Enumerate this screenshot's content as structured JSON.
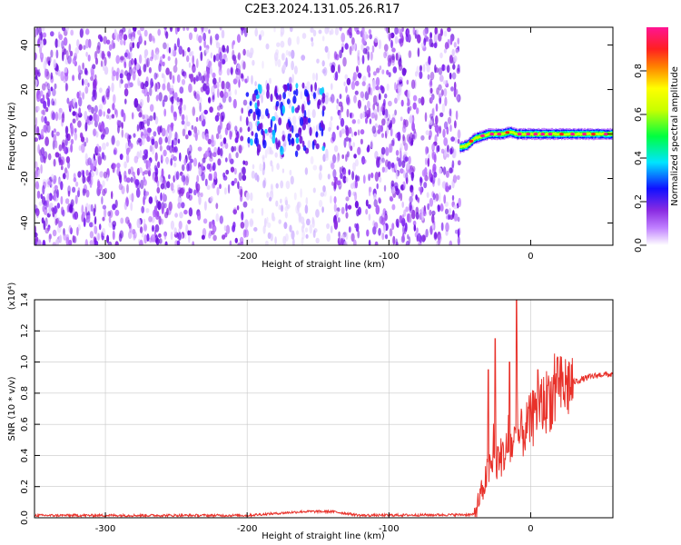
{
  "title": "C2E3.2024.131.05.26.R17",
  "chart_data": [
    {
      "type": "heatmap",
      "title": "C2E3.2024.131.05.26.R17",
      "xlabel": "Height of straight line (km)",
      "ylabel": "Frequency (Hz)",
      "xlim": [
        -350,
        58
      ],
      "ylim": [
        -50,
        48
      ],
      "x_ticks": [
        -300,
        -200,
        -100,
        0
      ],
      "y_ticks": [
        -40,
        -20,
        0,
        20,
        40
      ],
      "x_tick_labels": [
        "-300",
        "-200",
        "-100",
        "0"
      ],
      "y_tick_labels": [
        "-40",
        "-20",
        "0",
        "20",
        "40"
      ],
      "noise_region_x": [
        -350,
        -50
      ],
      "faint_band_x": [
        -200,
        -140
      ],
      "signal_cluster": {
        "x": [
          -200,
          -145
        ],
        "y": [
          -10,
          22
        ]
      },
      "signal_trace": {
        "x": [
          -50,
          -45,
          -40,
          -35,
          -30,
          -25,
          -20,
          -15,
          -10,
          -5,
          0,
          10,
          20,
          30,
          40,
          50,
          58
        ],
        "y": [
          -6,
          -5,
          -2,
          -1,
          0,
          0,
          0,
          1,
          0,
          0,
          0,
          0,
          0,
          0,
          0,
          0,
          0
        ]
      },
      "colorbar": {
        "label": "Normalized spectral amplitude",
        "range": [
          0.0,
          1.0
        ],
        "ticks": [
          0.0,
          0.2,
          0.4,
          0.6,
          0.8
        ],
        "tick_labels": [
          "0.0",
          "0.2",
          "0.4",
          "0.6",
          "0.8"
        ],
        "colors": [
          "#ffffff",
          "#a855f7",
          "#7a1ff0",
          "#1020ff",
          "#00e0ff",
          "#00ff40",
          "#c8ff00",
          "#ffff00",
          "#ff8000",
          "#ff2020",
          "#ff1493"
        ]
      }
    },
    {
      "type": "line",
      "xlabel": "Height of straight line (km)",
      "ylabel": "SNR (10 * v/v)",
      "scale_label": "(x10⁴)",
      "xlim": [
        -350,
        58
      ],
      "ylim": [
        0,
        1.4
      ],
      "x_ticks": [
        -300,
        -200,
        -100,
        0
      ],
      "y_ticks": [
        0.0,
        0.2,
        0.4,
        0.6,
        0.8,
        1.0,
        1.2,
        1.4
      ],
      "x_tick_labels": [
        "-300",
        "-200",
        "-100",
        "0"
      ],
      "y_tick_labels": [
        "0.0",
        "0.2",
        "0.4",
        "0.6",
        "0.8",
        "1.0",
        "1.2",
        "1.4"
      ],
      "color": "#e8312a",
      "series": [
        {
          "x": [
            -350,
            -200,
            -160,
            -140,
            -120,
            -40,
            -35,
            -30,
            -25,
            -20,
            -15,
            -10,
            -5,
            0,
            10,
            20,
            30,
            40,
            50,
            58
          ],
          "values": [
            0.015,
            0.015,
            0.04,
            0.04,
            0.015,
            0.02,
            0.15,
            0.3,
            0.35,
            0.4,
            0.45,
            0.5,
            0.55,
            0.62,
            0.74,
            0.82,
            0.87,
            0.9,
            0.92,
            0.92
          ]
        }
      ],
      "spikes": [
        {
          "x": -30,
          "value": 0.95
        },
        {
          "x": -25,
          "value": 1.15
        },
        {
          "x": -15,
          "value": 1.0
        },
        {
          "x": -10,
          "value": 1.4
        },
        {
          "x": 5,
          "value": 0.95
        },
        {
          "x": 12,
          "value": 0.85
        }
      ]
    }
  ]
}
